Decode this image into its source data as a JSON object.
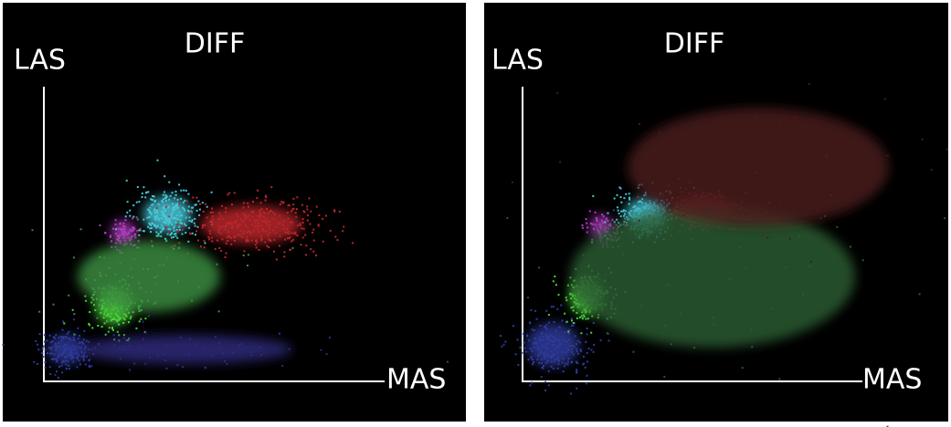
{
  "panels": [
    {
      "title": "DIFF",
      "y_label": "LAS",
      "x_label": "MAS"
    },
    {
      "title": "DIFF",
      "y_label": "LAS",
      "x_label": "MAS"
    }
  ]
}
